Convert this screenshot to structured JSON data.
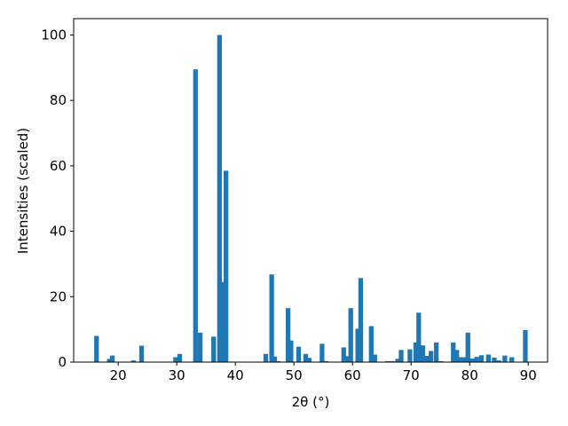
{
  "chart_data": {
    "type": "bar",
    "xlabel": "2θ (°)",
    "ylabel": "Intensities (scaled)",
    "color": "#1f77b4",
    "x": [
      16.3,
      18.5,
      19.0,
      22.6,
      24.0,
      29.8,
      30.5,
      33.2,
      34.0,
      36.3,
      37.3,
      37.8,
      38.4,
      45.2,
      46.2,
      46.7,
      47.3,
      49.0,
      49.5,
      50.8,
      52.0,
      52.6,
      54.8,
      55.5,
      58.5,
      59.0,
      59.7,
      60.9,
      61.4,
      63.2,
      63.8,
      66.0,
      66.8,
      67.7,
      68.3,
      69.8,
      70.8,
      71.3,
      72.0,
      72.8,
      73.4,
      74.3,
      75.1,
      77.2,
      77.8,
      78.4,
      79.0,
      79.7,
      80.4,
      81.2,
      82.0,
      83.2,
      84.2,
      85.0,
      86.0,
      87.2,
      89.5
    ],
    "values": [
      8,
      1,
      2,
      0.5,
      5,
      1.5,
      2.5,
      89.5,
      9,
      7.8,
      100,
      24.5,
      58.5,
      2.5,
      26.8,
      1.7,
      0.3,
      16.5,
      6.6,
      4.7,
      2.5,
      1.3,
      5.6,
      0.3,
      4.5,
      1.8,
      16.5,
      10.2,
      25.7,
      11,
      2.3,
      0.3,
      0.3,
      1,
      3.7,
      3.9,
      6,
      15.1,
      5.1,
      1.9,
      3.4,
      6,
      0.3,
      6,
      3.7,
      1.5,
      1.5,
      9,
      1.1,
      1.6,
      2.1,
      2.3,
      1.4,
      0.5,
      2,
      1.5,
      9.8
    ],
    "xlim": [
      12.4,
      93.3
    ],
    "ylim": [
      0,
      105
    ],
    "xticks": [
      20,
      30,
      40,
      50,
      60,
      70,
      80,
      90
    ],
    "yticks": [
      0,
      20,
      40,
      60,
      80,
      100
    ],
    "grid": false
  }
}
